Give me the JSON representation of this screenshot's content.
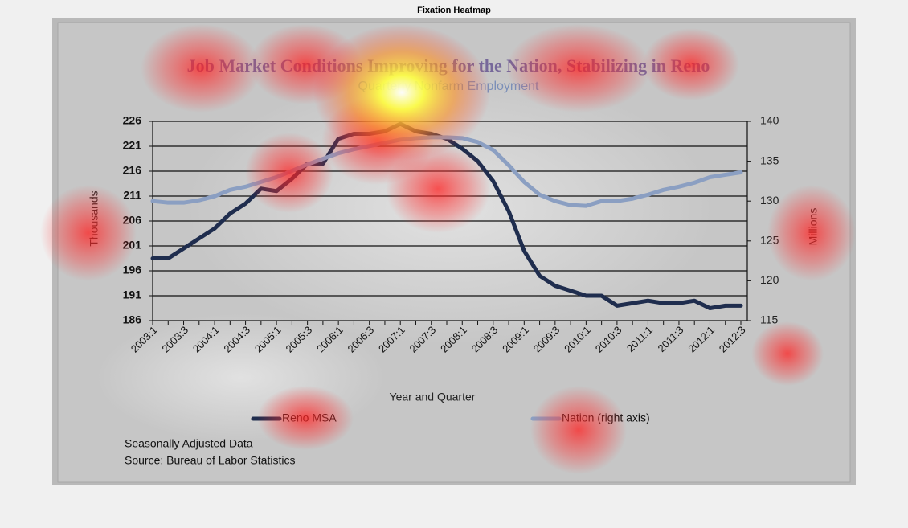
{
  "header": {
    "title": "Fixation Heatmap"
  },
  "chart_data": {
    "type": "line",
    "title": "Job  Market Conditions Improving for the Nation, Stabilizing in Reno",
    "subtitle": "Quarterly Nonfarm Employment",
    "x_label": "Year and Quarter",
    "y_label": "Thousands",
    "y2_label": "Millions",
    "categories": [
      "2003:1",
      null,
      "2003:3",
      null,
      "2004:1",
      null,
      "2004:3",
      null,
      "2005:1",
      null,
      "2005:3",
      null,
      "2006:1",
      null,
      "2006:3",
      null,
      "2007:1",
      null,
      "2007:3",
      null,
      "2008:1",
      null,
      "2008:3",
      null,
      "2009:1",
      null,
      "2009:3",
      null,
      "2010:1",
      null,
      "2010:3",
      null,
      "2011:1",
      null,
      "2011:3",
      null,
      "2012:1",
      null,
      "2012:3"
    ],
    "series": [
      {
        "name": "Reno MSA",
        "color": "#1f2d4e",
        "axis": "y",
        "values": [
          198.5,
          198.5,
          200.5,
          202.5,
          204.5,
          207.5,
          209.5,
          212.5,
          212,
          214.5,
          217.5,
          217.5,
          222.5,
          223.5,
          223.5,
          224,
          225.5,
          224,
          223.5,
          222.5,
          220.5,
          218,
          214,
          208,
          200,
          195,
          193,
          192,
          191,
          191,
          189,
          189.5,
          190,
          189.5,
          189.5,
          190,
          188.5,
          189,
          189
        ]
      },
      {
        "name": "Nation (right axis)",
        "color": "#8b9fc2",
        "axis": "y2",
        "values": [
          130,
          129.8,
          129.8,
          130.1,
          130.6,
          131.4,
          131.8,
          132.4,
          133,
          133.8,
          134.6,
          135.3,
          136,
          136.5,
          136.9,
          137.3,
          137.7,
          137.9,
          138,
          138,
          137.9,
          137.4,
          136.4,
          134.5,
          132.4,
          130.8,
          130,
          129.5,
          129.4,
          130,
          130,
          130.3,
          130.8,
          131.4,
          131.8,
          132.3,
          133,
          133.3,
          133.6
        ]
      }
    ],
    "ylim": [
      186,
      226
    ],
    "yticks": [
      186,
      191,
      196,
      201,
      206,
      211,
      216,
      221,
      226
    ],
    "y2lim": [
      115,
      140
    ],
    "y2ticks": [
      115,
      120,
      125,
      130,
      135,
      140
    ],
    "grid": true,
    "annotations": [
      "Seasonally Adjusted Data",
      "Source: Bureau of Labor  Statistics"
    ]
  }
}
